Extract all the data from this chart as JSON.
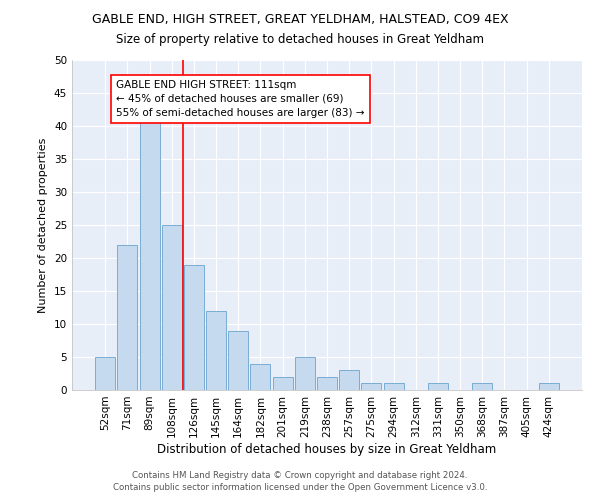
{
  "title": "GABLE END, HIGH STREET, GREAT YELDHAM, HALSTEAD, CO9 4EX",
  "subtitle": "Size of property relative to detached houses in Great Yeldham",
  "xlabel": "Distribution of detached houses by size in Great Yeldham",
  "ylabel": "Number of detached properties",
  "bar_color": "#c5d9ef",
  "bar_edge_color": "#7aadd4",
  "background_color": "#e8eef8",
  "grid_color": "#ffffff",
  "categories": [
    "52sqm",
    "71sqm",
    "89sqm",
    "108sqm",
    "126sqm",
    "145sqm",
    "164sqm",
    "182sqm",
    "201sqm",
    "219sqm",
    "238sqm",
    "257sqm",
    "275sqm",
    "294sqm",
    "312sqm",
    "331sqm",
    "350sqm",
    "368sqm",
    "387sqm",
    "405sqm",
    "424sqm"
  ],
  "values": [
    5,
    22,
    41,
    25,
    19,
    12,
    9,
    4,
    2,
    5,
    2,
    3,
    1,
    1,
    0,
    1,
    0,
    1,
    0,
    0,
    1
  ],
  "red_line_index": 3,
  "annotation_title": "GABLE END HIGH STREET: 111sqm",
  "annotation_line1": "← 45% of detached houses are smaller (69)",
  "annotation_line2": "55% of semi-detached houses are larger (83) →",
  "ylim": [
    0,
    50
  ],
  "yticks": [
    0,
    5,
    10,
    15,
    20,
    25,
    30,
    35,
    40,
    45,
    50
  ],
  "footer1": "Contains HM Land Registry data © Crown copyright and database right 2024.",
  "footer2": "Contains public sector information licensed under the Open Government Licence v3.0."
}
